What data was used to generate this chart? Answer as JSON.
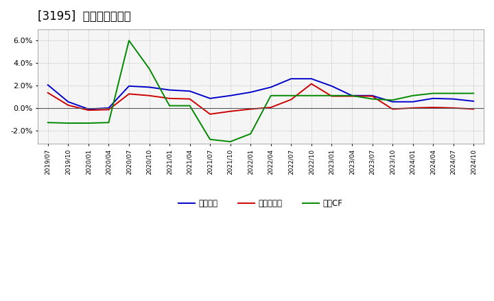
{
  "title": "[3195]  マージンの推移",
  "title_fontsize": 12,
  "ylim": [
    -3.2,
    7.0
  ],
  "yticks": [
    -2.0,
    0.0,
    2.0,
    4.0,
    6.0
  ],
  "background_color": "#ffffff",
  "plot_bg_color": "#f5f5f5",
  "legend_labels": [
    "経常利益",
    "当期純利益",
    "営業CF"
  ],
  "legend_colors": [
    "#0000cc",
    "#cc0000",
    "#008800"
  ],
  "x_labels": [
    "2019/07",
    "2019/10",
    "2020/01",
    "2020/04",
    "2020/07",
    "2020/10",
    "2021/01",
    "2021/04",
    "2021/07",
    "2021/10",
    "2022/01",
    "2022/04",
    "2022/07",
    "2022/10",
    "2023/01",
    "2023/04",
    "2023/07",
    "2023/10",
    "2024/01",
    "2024/04",
    "2024/07",
    "2024/10"
  ],
  "series_blue": [
    2.05,
    0.55,
    -0.1,
    0.0,
    1.95,
    1.85,
    1.6,
    1.5,
    0.85,
    1.1,
    1.4,
    1.85,
    2.6,
    2.6,
    1.95,
    1.1,
    1.1,
    0.55,
    0.55,
    0.85,
    0.8,
    0.6
  ],
  "series_red": [
    1.35,
    0.25,
    -0.2,
    -0.15,
    1.25,
    1.1,
    0.85,
    0.8,
    -0.55,
    -0.3,
    -0.1,
    0.05,
    0.75,
    2.15,
    1.05,
    1.05,
    1.05,
    -0.1,
    0.0,
    0.05,
    0.0,
    -0.1
  ],
  "series_green": [
    -1.3,
    -1.35,
    -1.35,
    -1.3,
    6.0,
    3.5,
    0.2,
    0.2,
    -2.8,
    -3.0,
    -2.3,
    1.1,
    1.1,
    1.1,
    1.1,
    1.1,
    0.8,
    0.7,
    1.1,
    1.3,
    1.3,
    1.3
  ]
}
